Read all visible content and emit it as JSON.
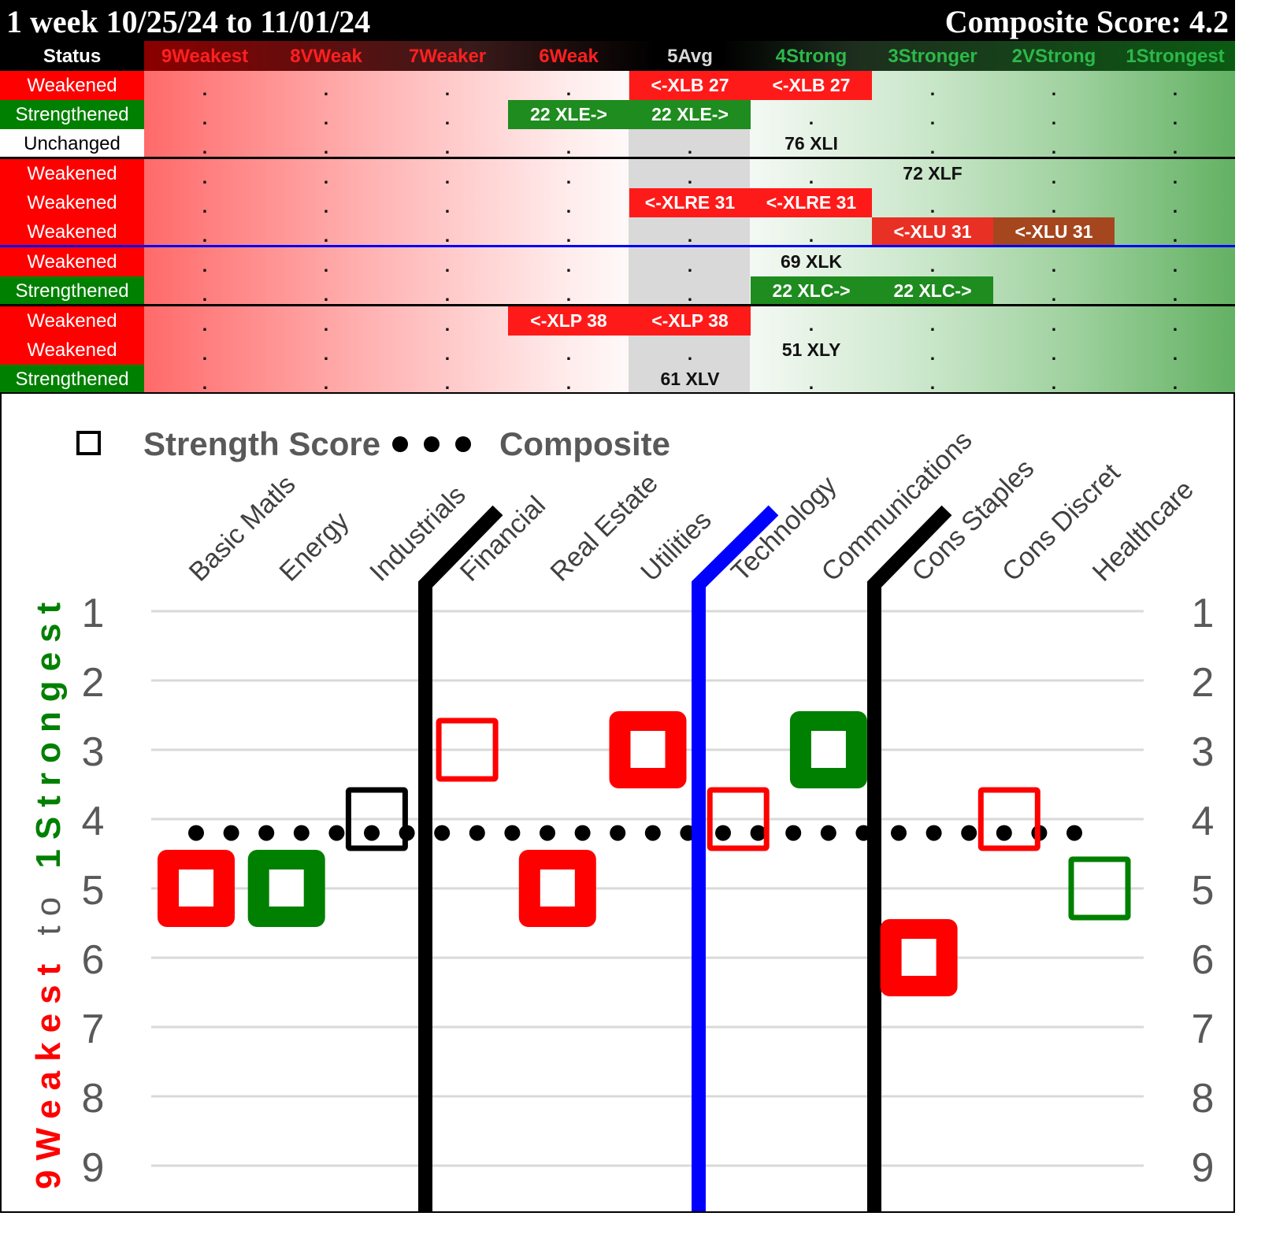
{
  "header": {
    "title": "1 week 10/25/24 to 11/01/24",
    "composite": "Composite Score: 4.2"
  },
  "table": {
    "status_header": "Status",
    "columns": [
      {
        "label": "9Weakest",
        "color": "#ff2020"
      },
      {
        "label": "8VWeak",
        "color": "#ff2020"
      },
      {
        "label": "7Weaker",
        "color": "#ff2020"
      },
      {
        "label": "6Weak",
        "color": "#ff2020"
      },
      {
        "label": "5Avg",
        "color": "#d9d9d9"
      },
      {
        "label": "4Strong",
        "color": "#2db84a"
      },
      {
        "label": "3Stronger",
        "color": "#2db84a"
      },
      {
        "label": "2VStrong",
        "color": "#2db84a"
      },
      {
        "label": "1Strongest",
        "color": "#2db84a"
      }
    ],
    "rows": [
      {
        "status": "Weakened",
        "cells": [
          ".",
          ".",
          ".",
          ".",
          "<-XLB 27",
          "<-XLB 27",
          ".",
          ".",
          "."
        ]
      },
      {
        "status": "Strengthened",
        "cells": [
          ".",
          ".",
          ".",
          "22 XLE->",
          "22 XLE->",
          ".",
          ".",
          ".",
          "."
        ]
      },
      {
        "status": "Unchanged",
        "cells": [
          ".",
          ".",
          ".",
          ".",
          ".",
          "76 XLI",
          ".",
          ".",
          "."
        ]
      },
      {
        "status": "Weakened",
        "cells": [
          ".",
          ".",
          ".",
          ".",
          ".",
          ".",
          "72 XLF",
          ".",
          "."
        ]
      },
      {
        "status": "Weakened",
        "cells": [
          ".",
          ".",
          ".",
          ".",
          "<-XLRE 31",
          "<-XLRE 31",
          ".",
          ".",
          "."
        ]
      },
      {
        "status": "Weakened",
        "cells": [
          ".",
          ".",
          ".",
          ".",
          ".",
          ".",
          "<-XLU 31",
          "<-XLU 31",
          "."
        ]
      },
      {
        "status": "Weakened",
        "cells": [
          ".",
          ".",
          ".",
          ".",
          ".",
          "69 XLK",
          ".",
          ".",
          "."
        ]
      },
      {
        "status": "Strengthened",
        "cells": [
          ".",
          ".",
          ".",
          ".",
          ".",
          "22 XLC->",
          "22 XLC->",
          ".",
          "."
        ]
      },
      {
        "status": "Weakened",
        "cells": [
          ".",
          ".",
          ".",
          "<-XLP 38",
          "<-XLP 38",
          ".",
          ".",
          ".",
          "."
        ]
      },
      {
        "status": "Weakened",
        "cells": [
          ".",
          ".",
          ".",
          ".",
          ".",
          "51 XLY",
          ".",
          ".",
          "."
        ]
      },
      {
        "status": "Strengthened",
        "cells": [
          ".",
          ".",
          ".",
          ".",
          "61 XLV",
          ".",
          ".",
          ".",
          "."
        ]
      }
    ],
    "status_colors": {
      "Weakened": "#ff0000",
      "Strengthened": "#008000",
      "Unchanged": "#ffffff"
    },
    "highlight_colors": {
      "red": "#ff1a1a",
      "green": "#1e8c1e",
      "brown": "#a5461e"
    }
  },
  "chart_data": {
    "type": "scatter",
    "title": "",
    "legend": [
      {
        "marker": "open-square",
        "label": "Strength Score"
      },
      {
        "marker": "dots",
        "label": "Composite"
      }
    ],
    "categories": [
      "Basic Matls",
      "Energy",
      "Industrials",
      "Financial",
      "Real Estate",
      "Utilities",
      "Technology",
      "Communications",
      "Cons Staples",
      "Cons Discret",
      "Healthcare"
    ],
    "series": [
      {
        "name": "Strength Score",
        "values": [
          5,
          5,
          4,
          3,
          5,
          3,
          4,
          3,
          6,
          4,
          5
        ],
        "colors": [
          "#ff0000",
          "#008000",
          "#000000",
          "#ff0000",
          "#ff0000",
          "#ff0000",
          "#ff0000",
          "#008000",
          "#ff0000",
          "#ff0000",
          "#008000"
        ],
        "thick": [
          true,
          true,
          false,
          false,
          true,
          true,
          false,
          true,
          true,
          false,
          false
        ]
      },
      {
        "name": "Composite",
        "value": 4.2
      }
    ],
    "ylabel_left": {
      "part1": "9Weakest",
      "part2": "to",
      "part3": "1Strongest"
    },
    "yticks": [
      "1",
      "2",
      "3",
      "4",
      "5",
      "6",
      "7",
      "8",
      "9"
    ],
    "ylim": [
      1,
      9
    ],
    "y_inverted": true,
    "grid": true,
    "dividers": [
      {
        "after": "Industrials",
        "color": "#000000"
      },
      {
        "after": "Utilities",
        "color": "#0000ff"
      },
      {
        "after": "Communications",
        "color": "#000000"
      }
    ]
  }
}
